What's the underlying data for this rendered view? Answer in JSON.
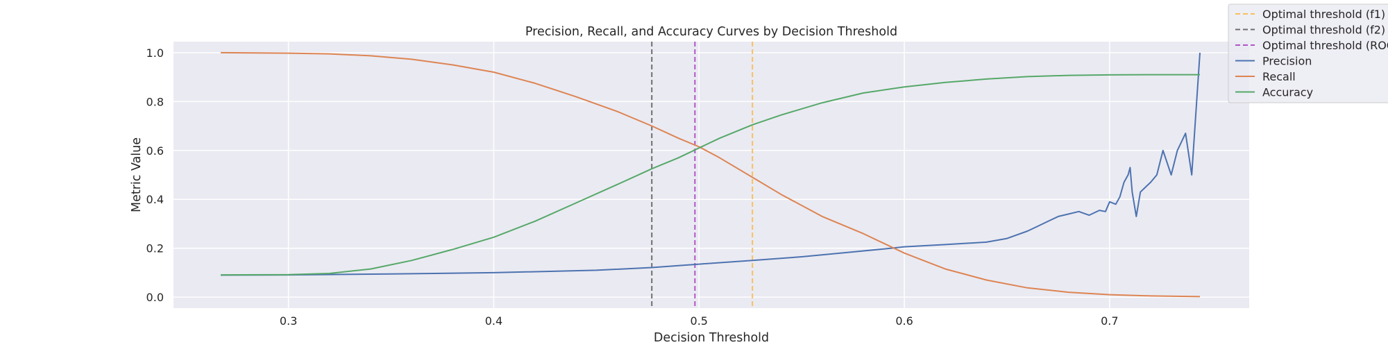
{
  "chart_data": {
    "type": "line",
    "title": "Precision, Recall, and Accuracy Curves by Decision Threshold",
    "xlabel": "Decision Threshold",
    "ylabel": "Metric Value",
    "xlim": [
      0.244,
      0.768
    ],
    "ylim": [
      -0.045,
      1.045
    ],
    "xticks": [
      0.3,
      0.4,
      0.5,
      0.6,
      0.7
    ],
    "yticks": [
      0.0,
      0.2,
      0.4,
      0.6,
      0.8,
      1.0
    ],
    "xtick_labels": [
      "0.3",
      "0.4",
      "0.5",
      "0.6",
      "0.7"
    ],
    "ytick_labels": [
      "0.0",
      "0.2",
      "0.4",
      "0.6",
      "0.8",
      "1.0"
    ],
    "grid": true,
    "legend_position": "top-right",
    "vlines": [
      {
        "name": "Optimal threshold (f1)",
        "x": 0.526,
        "color": "#f5c15e",
        "dash": true
      },
      {
        "name": "Optimal threshold (f2)",
        "x": 0.477,
        "color": "#6e6e6e",
        "dash": true
      },
      {
        "name": "Optimal threshold (ROC)",
        "x": 0.498,
        "color": "#b054c4",
        "dash": true
      }
    ],
    "series": [
      {
        "name": "Precision",
        "color": "#4c72b0",
        "x": [
          0.267,
          0.3,
          0.35,
          0.4,
          0.45,
          0.477,
          0.5,
          0.526,
          0.55,
          0.575,
          0.59,
          0.6,
          0.62,
          0.64,
          0.65,
          0.66,
          0.665,
          0.67,
          0.675,
          0.68,
          0.685,
          0.69,
          0.695,
          0.698,
          0.7,
          0.703,
          0.705,
          0.707,
          0.709,
          0.71,
          0.711,
          0.713,
          0.715,
          0.72,
          0.723,
          0.726,
          0.73,
          0.733,
          0.737,
          0.74,
          0.744
        ],
        "y": [
          0.09,
          0.091,
          0.095,
          0.1,
          0.11,
          0.121,
          0.135,
          0.15,
          0.165,
          0.185,
          0.197,
          0.206,
          0.215,
          0.225,
          0.24,
          0.27,
          0.29,
          0.31,
          0.33,
          0.34,
          0.35,
          0.335,
          0.355,
          0.35,
          0.39,
          0.38,
          0.41,
          0.47,
          0.5,
          0.53,
          0.43,
          0.33,
          0.43,
          0.47,
          0.5,
          0.6,
          0.5,
          0.6,
          0.67,
          0.5,
          1.0
        ]
      },
      {
        "name": "Recall",
        "color": "#dd8452",
        "x": [
          0.267,
          0.3,
          0.32,
          0.34,
          0.36,
          0.38,
          0.4,
          0.42,
          0.44,
          0.46,
          0.477,
          0.49,
          0.5,
          0.51,
          0.526,
          0.54,
          0.56,
          0.58,
          0.6,
          0.62,
          0.64,
          0.66,
          0.68,
          0.7,
          0.72,
          0.744
        ],
        "y": [
          1.0,
          0.998,
          0.995,
          0.987,
          0.973,
          0.95,
          0.92,
          0.875,
          0.82,
          0.76,
          0.7,
          0.65,
          0.615,
          0.57,
          0.49,
          0.42,
          0.33,
          0.26,
          0.18,
          0.115,
          0.07,
          0.038,
          0.02,
          0.01,
          0.005,
          0.002
        ]
      },
      {
        "name": "Accuracy",
        "color": "#55a868",
        "x": [
          0.267,
          0.3,
          0.32,
          0.34,
          0.36,
          0.38,
          0.4,
          0.42,
          0.44,
          0.46,
          0.477,
          0.49,
          0.5,
          0.51,
          0.526,
          0.54,
          0.56,
          0.58,
          0.6,
          0.62,
          0.64,
          0.66,
          0.68,
          0.7,
          0.72,
          0.744
        ],
        "y": [
          0.091,
          0.092,
          0.097,
          0.115,
          0.15,
          0.195,
          0.245,
          0.31,
          0.385,
          0.46,
          0.525,
          0.57,
          0.61,
          0.65,
          0.705,
          0.745,
          0.795,
          0.835,
          0.86,
          0.878,
          0.892,
          0.902,
          0.907,
          0.909,
          0.91,
          0.91
        ]
      }
    ]
  }
}
